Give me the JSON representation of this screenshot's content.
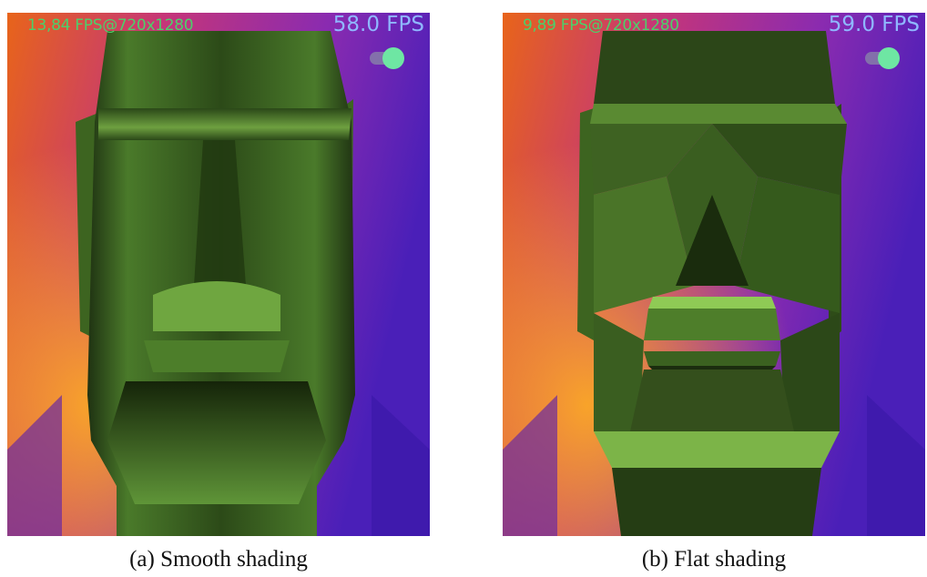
{
  "panels": [
    {
      "stat_text": "13,84 FPS@720x1280",
      "fps_text": "58.0 FPS",
      "toggle_on": true,
      "caption": "(a) Smooth shading"
    },
    {
      "stat_text": "9,89 FPS@720x1280",
      "fps_text": "59.0 FPS",
      "toggle_on": true,
      "caption": "(b) Flat shading"
    }
  ],
  "colors": {
    "stat_text": "#4cd06a",
    "fps_text": "#8fb7ff",
    "toggle_knob": "#6ee6a3",
    "model_green": "#5f8f3a",
    "background_orange": "#f07a1e",
    "background_purple": "#5a1fb0"
  },
  "icons": {
    "toggle": "toggle-switch-icon"
  }
}
